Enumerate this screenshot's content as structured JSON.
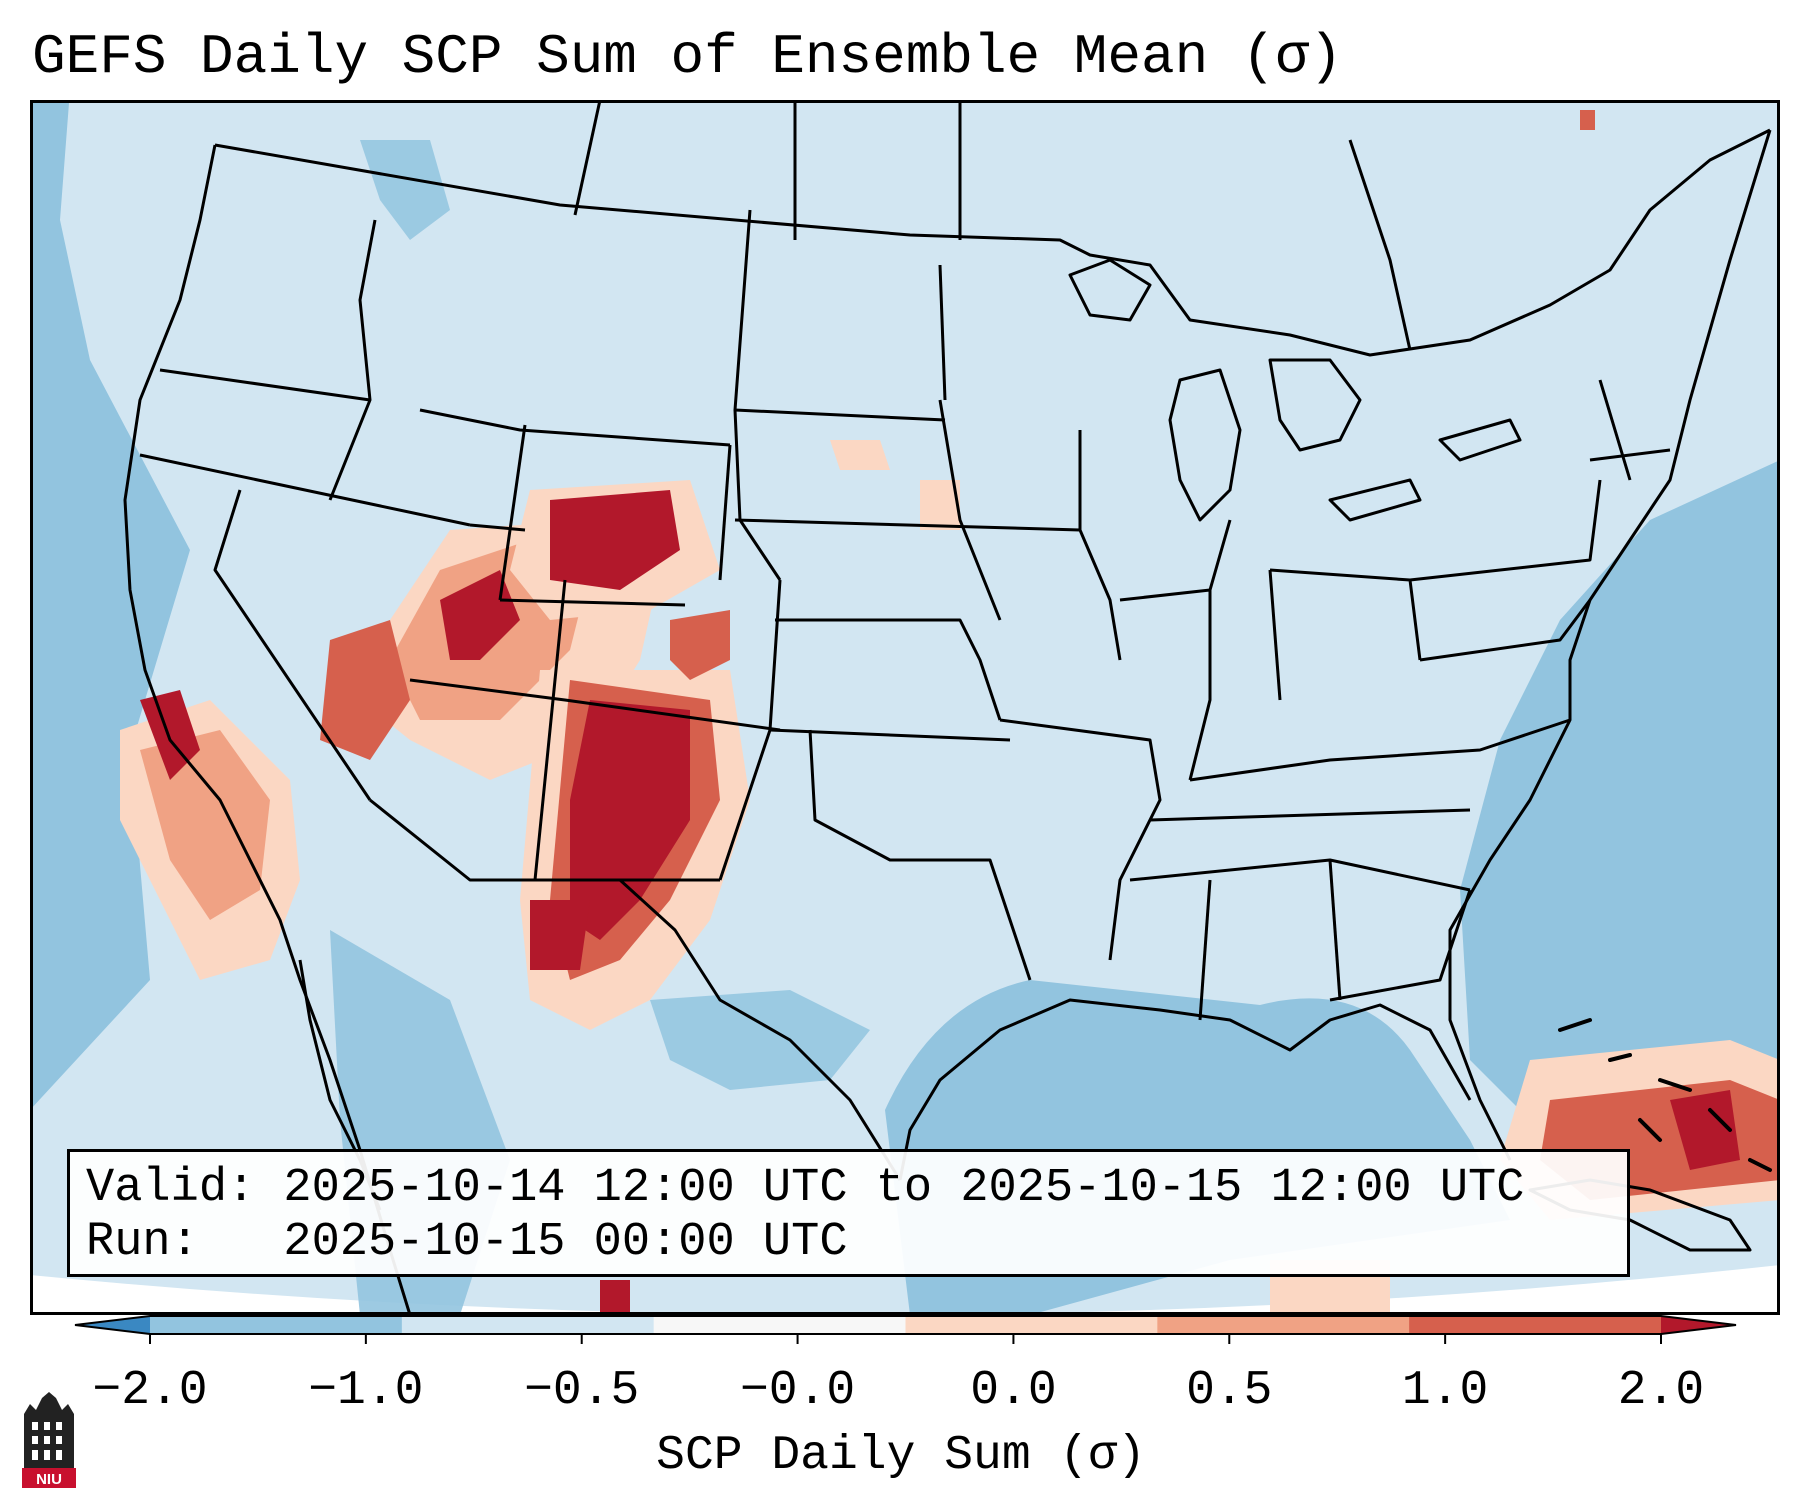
{
  "title": "GEFS Daily SCP Sum of Ensemble Mean (σ)",
  "info": {
    "valid_line": "Valid: 2025-10-14 12:00 UTC to 2025-10-15 12:00 UTC",
    "run_line": "Run:   2025-10-15 00:00 UTC"
  },
  "colorbar": {
    "label": "SCP Daily Sum (σ)",
    "ticks": [
      "−2.0",
      "−1.0",
      "−0.5",
      "−0.0",
      "0.0",
      "0.5",
      "1.0",
      "2.0"
    ],
    "colors": [
      "#3a88c2",
      "#92c4df",
      "#d2e6f2",
      "#f7f7f7",
      "#fbd7c3",
      "#f0a284",
      "#d6604d",
      "#b2182b"
    ],
    "extend": "both"
  },
  "map": {
    "region": "Continental United States",
    "background_ocean": "#92c4df",
    "background_land": "#d2e6f2",
    "outline_color": "#000000",
    "high_value_areas": [
      "Colorado",
      "Wyoming",
      "Utah",
      "Nevada",
      "California",
      "New Mexico",
      "Cuba"
    ]
  },
  "logo": {
    "text": "NIU",
    "color": "#c8102e"
  }
}
